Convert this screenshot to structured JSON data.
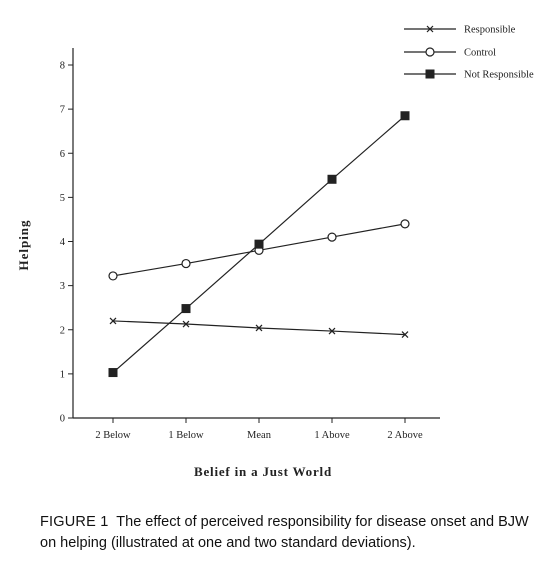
{
  "chart_data": {
    "type": "line",
    "xlabel": "Belief in a Just World",
    "ylabel": "Helping",
    "categories": [
      "2 Below",
      "1 Below",
      "Mean",
      "1 Above",
      "2 Above"
    ],
    "ylim": [
      0,
      8
    ],
    "yticks": [
      "0",
      "1",
      "2",
      "3",
      "4",
      "5",
      "6",
      "7",
      "8"
    ],
    "grid": false,
    "legend_position": "top-right",
    "series": [
      {
        "name": "Responsible",
        "marker": "x",
        "values": [
          2.2,
          2.13,
          2.04,
          1.97,
          1.89
        ]
      },
      {
        "name": "Control",
        "marker": "open-circle",
        "values": [
          3.22,
          3.5,
          3.8,
          4.1,
          4.4
        ]
      },
      {
        "name": "Not Responsible",
        "marker": "filled-square",
        "values": [
          1.03,
          2.48,
          3.94,
          5.41,
          6.85
        ]
      }
    ]
  },
  "caption": {
    "label": "FIGURE 1",
    "text": "The effect of perceived responsibility for disease onset and BJW on helping (illustrated at one and two standard deviations)."
  },
  "colors": {
    "ink": "#222222"
  }
}
